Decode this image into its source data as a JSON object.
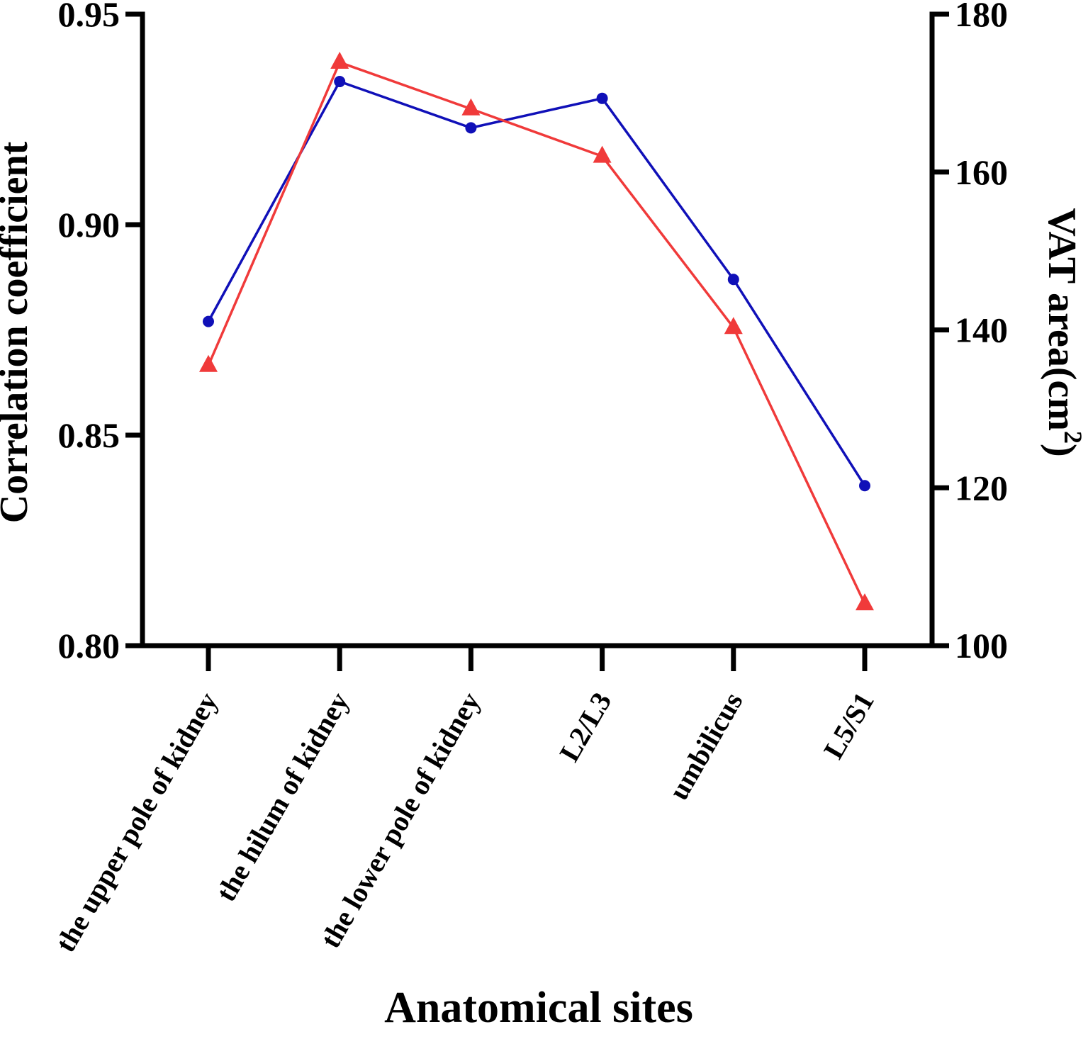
{
  "chart_data": {
    "type": "line",
    "title": "",
    "xlabel": "Anatomical sites",
    "ylabel": "Correlation coefficient",
    "ylabel_right": "VAT area(cm",
    "ylabel_right_sup": "2",
    "ylabel_right_close": ")",
    "categories": [
      "the upper pole of kidney",
      "the hilum of kidney",
      "the lower pole of kidney",
      "L2/L3",
      "umbilicus",
      "L5/S1"
    ],
    "ylim": [
      0.8,
      0.95
    ],
    "yticks": [
      "0.80",
      "0.85",
      "0.90",
      "0.95"
    ],
    "y2lim": [
      100,
      180
    ],
    "y2ticks": [
      "100",
      "120",
      "140",
      "160",
      "180"
    ],
    "series": [
      {
        "name": "Correlation coefficient",
        "axis": "left",
        "color": "#1010b8",
        "marker": "circle",
        "values": [
          0.877,
          0.934,
          0.923,
          0.93,
          0.887,
          0.838
        ]
      },
      {
        "name": "VAT area",
        "axis": "right",
        "color": "#f03a3a",
        "marker": "triangle",
        "values": [
          135.5,
          173.9,
          168.0,
          162.0,
          140.3,
          105.3
        ]
      }
    ],
    "legend": "none",
    "grid": false
  }
}
